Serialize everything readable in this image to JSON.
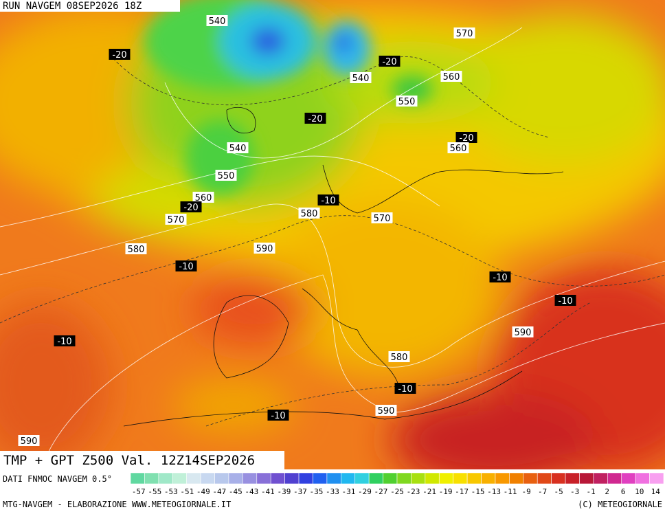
{
  "header": {
    "run": "RUN NAVGEM 08SEP2026 18Z"
  },
  "map": {
    "contour_labels": [
      "540",
      "-20",
      "570",
      "-20",
      "540",
      "560",
      "550",
      "-20",
      "-20",
      "540",
      "560",
      "550",
      "560",
      "-20",
      "570",
      "-10",
      "580",
      "570",
      "590",
      "580",
      "-10",
      "-10",
      "-10",
      "-10",
      "590",
      "580",
      "-10",
      "590",
      "-10",
      "590"
    ]
  },
  "footer": {
    "title": "TMP + GPT Z500 Val. 12Z14SEP2026",
    "source": "DATI FNMOC NAVGEM 0.5°",
    "scale_labels": [
      "-57",
      "-55",
      "-53",
      "-51",
      "-49",
      "-47",
      "-45",
      "-43",
      "-41",
      "-39",
      "-37",
      "-35",
      "-33",
      "-31",
      "-29",
      "-27",
      "-25",
      "-23",
      "-21",
      "-19",
      "-17",
      "-15",
      "-13",
      "-11",
      "-9",
      "-7",
      "-5",
      "-3",
      "-1",
      "2",
      "6",
      "10",
      "14"
    ],
    "credit_left": "MTG-NAVGEM - ELABORAZIONE WWW.METEOGIORNALE.IT",
    "credit_right": "(C) METEOGIORNALE"
  }
}
